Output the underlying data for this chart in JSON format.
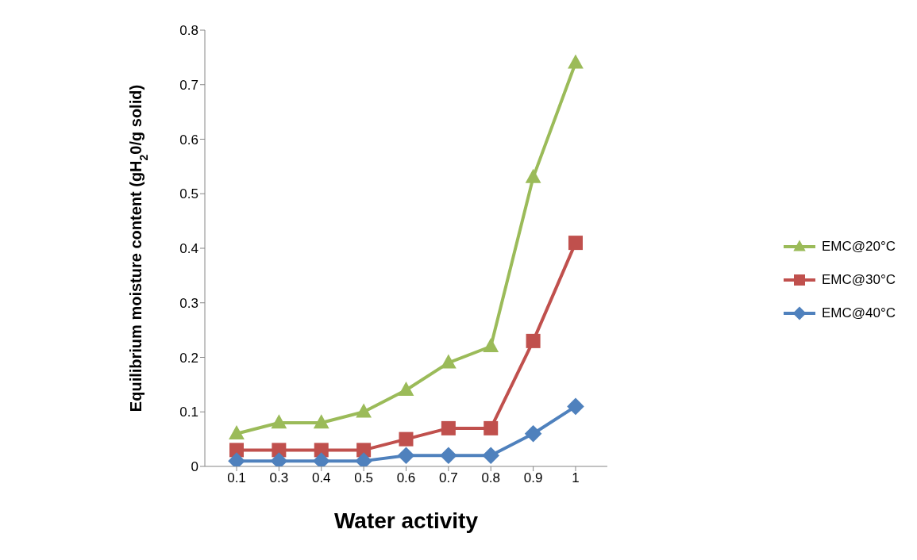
{
  "chart_data": {
    "type": "line",
    "xlabel": "Water activity",
    "ylabel": "Equilibrium moisture content (gH$_{2}$0/g solid)",
    "categories": [
      "0.1",
      "0.3",
      "0.4",
      "0.5",
      "0.6",
      "0.7",
      "0.8",
      "0.9",
      "1"
    ],
    "series": [
      {
        "name": "EMC@20°C",
        "color": "#9bbb59",
        "marker": "triangle",
        "values": [
          0.06,
          0.08,
          0.08,
          0.1,
          0.14,
          0.19,
          0.22,
          0.53,
          0.74
        ]
      },
      {
        "name": "EMC@30°C",
        "color": "#c0504d",
        "marker": "square",
        "values": [
          0.03,
          0.03,
          0.03,
          0.03,
          0.05,
          0.07,
          0.07,
          0.23,
          0.41
        ]
      },
      {
        "name": "EMC@40°C",
        "color": "#4f81bd",
        "marker": "diamond",
        "values": [
          0.01,
          0.01,
          0.01,
          0.01,
          0.02,
          0.02,
          0.02,
          0.06,
          0.11
        ]
      }
    ],
    "ylim": [
      0,
      0.8
    ],
    "yticks": [
      0,
      0.1,
      0.2,
      0.3,
      0.4,
      0.5,
      0.6,
      0.7,
      0.8
    ],
    "grid": false,
    "legend": "right",
    "line_style": "solid"
  }
}
